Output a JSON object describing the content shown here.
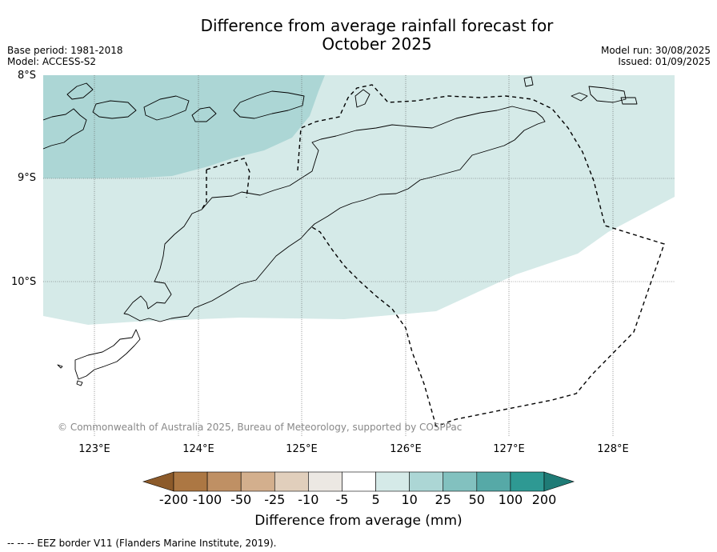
{
  "title": {
    "line1": "Difference from average rainfall forecast for",
    "line2": "October 2025"
  },
  "meta": {
    "base_period": "Base period: 1981-2018",
    "model": "Model: ACCESS-S2",
    "model_run": "Model run: 30/08/2025",
    "issued": "Issued: 01/09/2025"
  },
  "axes": {
    "lat_labels": [
      "8°S",
      "9°S",
      "10°S"
    ],
    "lon_labels": [
      "123°E",
      "124°E",
      "125°E",
      "126°E",
      "127°E",
      "128°E"
    ]
  },
  "copyright": "© Commonwealth of Australia 2025, Bureau of Meteorology, supported by COSPPac",
  "colorbar": {
    "title": "Difference from average (mm)",
    "labels": [
      "-200",
      "-100",
      "-50",
      "-25",
      "-10",
      "-5",
      "5",
      "10",
      "25",
      "50",
      "100",
      "200"
    ],
    "colors": [
      "#8c5a2a",
      "#ac7743",
      "#bf9064",
      "#d3af8d",
      "#e1cfbc",
      "#ece8e3",
      "#ffffff",
      "#d5eae8",
      "#acd6d5",
      "#82c1bf",
      "#56a9a7",
      "#2e9993",
      "#1f7b76"
    ]
  },
  "footer": "--  --  -- EEZ border V11 (Flanders Marine Institute, 2019).",
  "map_colors": {
    "light_teal": "#d5eae8",
    "medium_teal": "#acd6d5"
  }
}
